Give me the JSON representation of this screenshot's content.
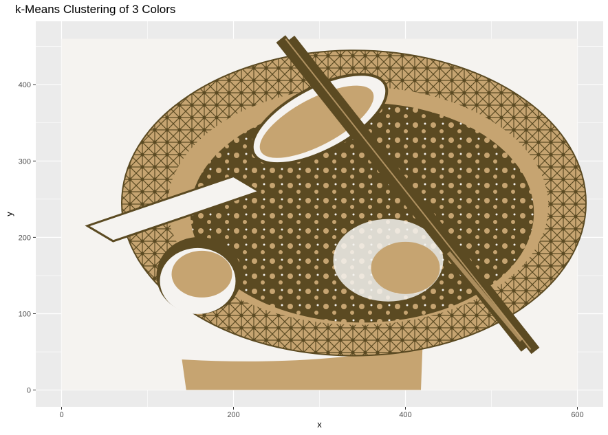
{
  "chart_data": {
    "type": "heatmap",
    "title": "k-Means Clustering of 3 Colors",
    "xlabel": "x",
    "ylabel": "y",
    "xlim": [
      -30,
      630
    ],
    "ylim": [
      -22,
      483
    ],
    "x_ticks": [
      0,
      200,
      400,
      600
    ],
    "y_ticks": [
      0,
      100,
      200,
      300,
      400
    ],
    "image_extent": {
      "x": [
        0,
        600
      ],
      "y": [
        0,
        460
      ]
    },
    "grid": true,
    "panel_background": "#ebebeb",
    "cluster_colors": [
      "#f5f3f0",
      "#c6a471",
      "#5b4a22"
    ],
    "regions": {
      "plate_center": [
        340,
        245
      ],
      "plate_radius": [
        270,
        200
      ],
      "spoon_bowl_center": [
        300,
        355
      ],
      "egg_center": [
        160,
        150
      ],
      "chopsticks": [
        [
          255,
          460
        ],
        [
          540,
          55
        ]
      ]
    }
  }
}
